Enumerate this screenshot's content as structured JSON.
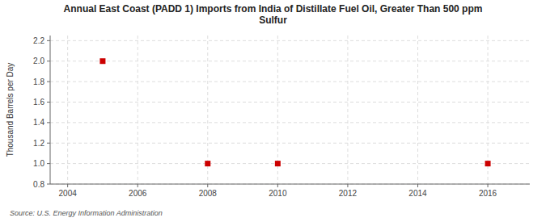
{
  "chart_data": {
    "type": "scatter",
    "title": "Annual East Coast (PADD 1) Imports from India of Distillate Fuel Oil, Greater Than 500 ppm\nSulfur",
    "y_label": "Thousand Barrels per Day",
    "source": "Source: U.S. Energy Information Administration",
    "x": [
      2005,
      2008,
      2010,
      2016
    ],
    "values": [
      2.0,
      1.0,
      1.0,
      1.0
    ],
    "color": "#cc0000",
    "marker": "square",
    "xlim": [
      2003.5,
      2017.2
    ],
    "ylim": [
      0.8,
      2.25
    ],
    "xticks": [
      2004,
      2006,
      2008,
      2010,
      2012,
      2014,
      2016
    ],
    "yticks": [
      0.8,
      {
        "value": 1.0,
        "label": "1.0"
      },
      1.2,
      1.4,
      1.6,
      1.8,
      {
        "value": 2.0,
        "label": "2.0"
      },
      2.2
    ],
    "grid": true
  }
}
